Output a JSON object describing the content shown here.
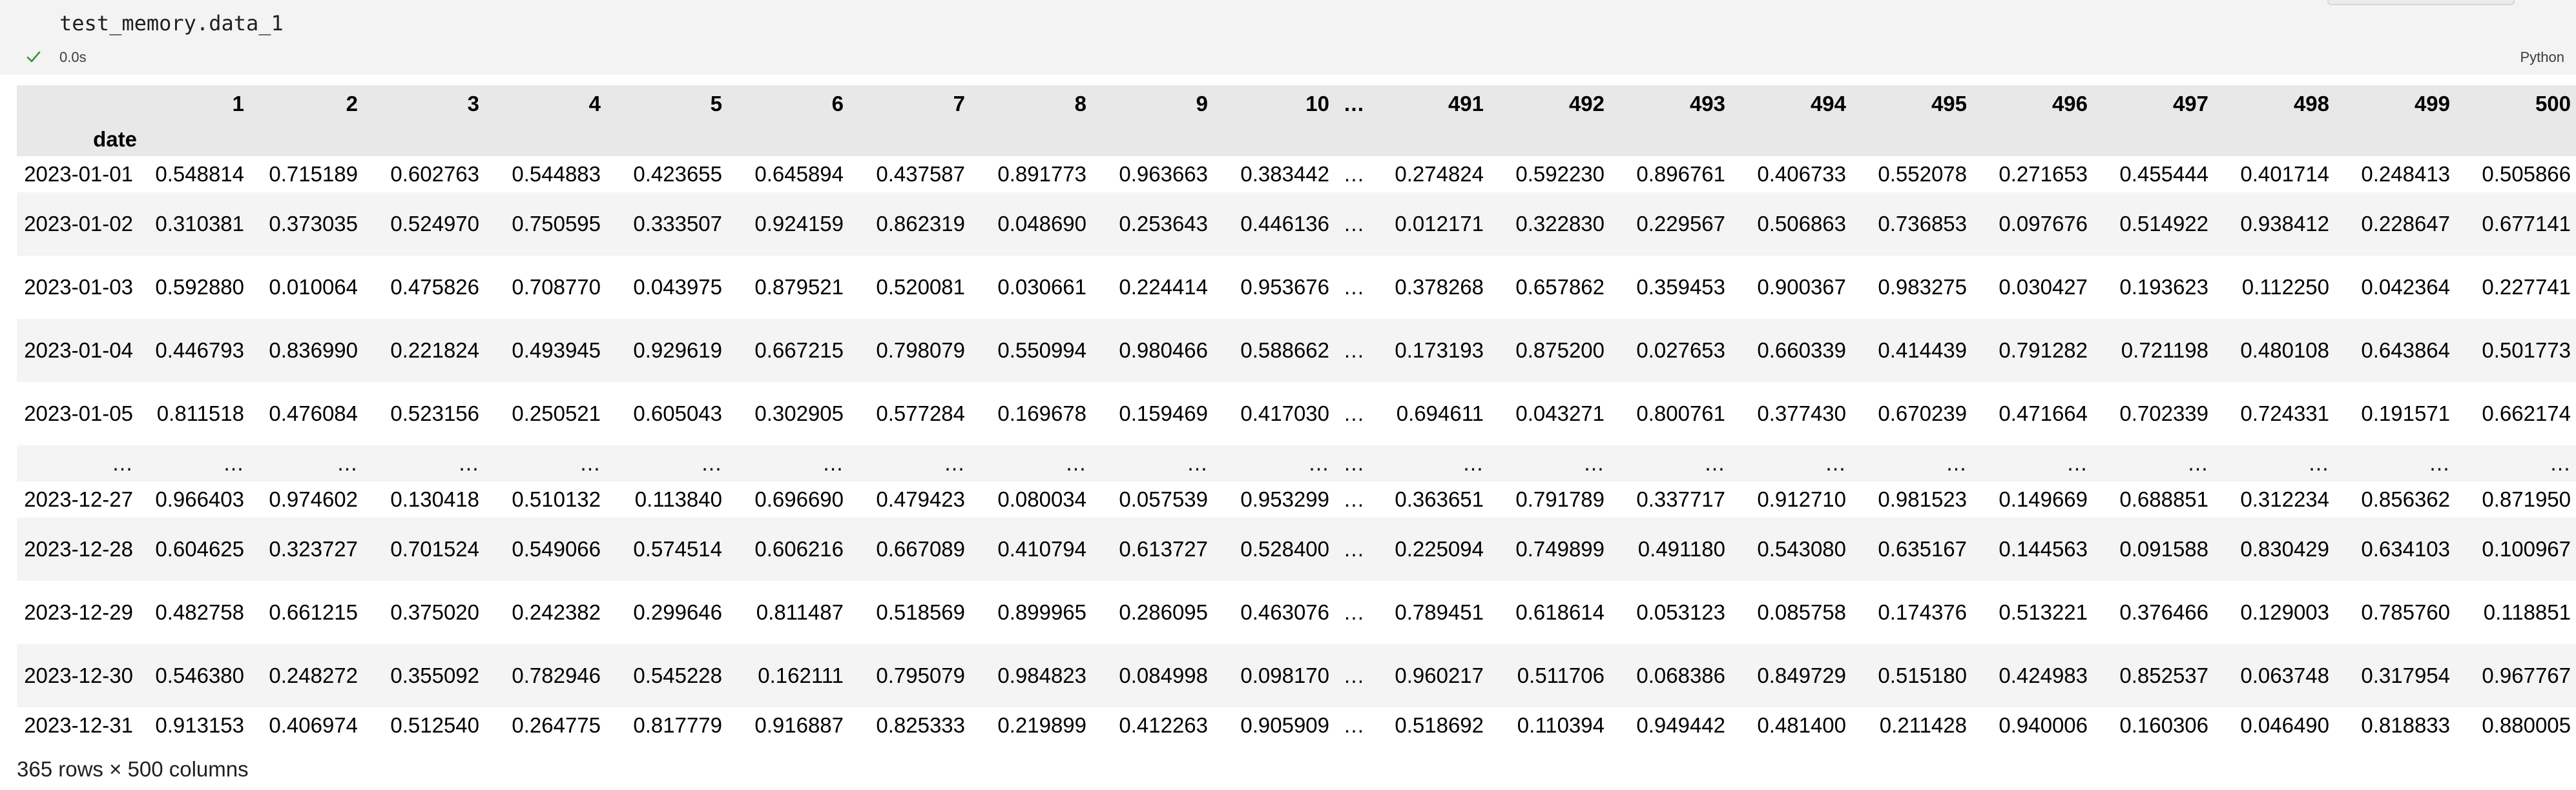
{
  "cell": {
    "code_object": "test_memory",
    "code_attr": "data_1",
    "exec_time": "0.0s",
    "language": "Python"
  },
  "dataframe": {
    "index_name": "date",
    "columns": [
      "1",
      "2",
      "3",
      "4",
      "5",
      "6",
      "7",
      "8",
      "9",
      "10",
      "…",
      "491",
      "492",
      "493",
      "494",
      "495",
      "496",
      "497",
      "498",
      "499",
      "500"
    ],
    "rows": [
      {
        "index": "2023-01-01",
        "values": [
          "0.548814",
          "0.715189",
          "0.602763",
          "0.544883",
          "0.423655",
          "0.645894",
          "0.437587",
          "0.891773",
          "0.963663",
          "0.383442",
          "…",
          "0.274824",
          "0.592230",
          "0.896761",
          "0.406733",
          "0.552078",
          "0.271653",
          "0.455444",
          "0.401714",
          "0.248413",
          "0.505866"
        ]
      },
      {
        "index": "2023-01-02",
        "values": [
          "0.310381",
          "0.373035",
          "0.524970",
          "0.750595",
          "0.333507",
          "0.924159",
          "0.862319",
          "0.048690",
          "0.253643",
          "0.446136",
          "…",
          "0.012171",
          "0.322830",
          "0.229567",
          "0.506863",
          "0.736853",
          "0.097676",
          "0.514922",
          "0.938412",
          "0.228647",
          "0.677141"
        ]
      },
      {
        "index": "2023-01-03",
        "values": [
          "0.592880",
          "0.010064",
          "0.475826",
          "0.708770",
          "0.043975",
          "0.879521",
          "0.520081",
          "0.030661",
          "0.224414",
          "0.953676",
          "…",
          "0.378268",
          "0.657862",
          "0.359453",
          "0.900367",
          "0.983275",
          "0.030427",
          "0.193623",
          "0.112250",
          "0.042364",
          "0.227741"
        ]
      },
      {
        "index": "2023-01-04",
        "values": [
          "0.446793",
          "0.836990",
          "0.221824",
          "0.493945",
          "0.929619",
          "0.667215",
          "0.798079",
          "0.550994",
          "0.980466",
          "0.588662",
          "…",
          "0.173193",
          "0.875200",
          "0.027653",
          "0.660339",
          "0.414439",
          "0.791282",
          "0.721198",
          "0.480108",
          "0.643864",
          "0.501773"
        ]
      },
      {
        "index": "2023-01-05",
        "values": [
          "0.811518",
          "0.476084",
          "0.523156",
          "0.250521",
          "0.605043",
          "0.302905",
          "0.577284",
          "0.169678",
          "0.159469",
          "0.417030",
          "…",
          "0.694611",
          "0.043271",
          "0.800761",
          "0.377430",
          "0.670239",
          "0.471664",
          "0.702339",
          "0.724331",
          "0.191571",
          "0.662174"
        ]
      },
      {
        "index": "…",
        "values": [
          "…",
          "…",
          "…",
          "…",
          "…",
          "…",
          "…",
          "…",
          "…",
          "…",
          "…",
          "…",
          "…",
          "…",
          "…",
          "…",
          "…",
          "…",
          "…",
          "…",
          "…"
        ]
      },
      {
        "index": "2023-12-27",
        "values": [
          "0.966403",
          "0.974602",
          "0.130418",
          "0.510132",
          "0.113840",
          "0.696690",
          "0.479423",
          "0.080034",
          "0.057539",
          "0.953299",
          "…",
          "0.363651",
          "0.791789",
          "0.337717",
          "0.912710",
          "0.981523",
          "0.149669",
          "0.688851",
          "0.312234",
          "0.856362",
          "0.871950"
        ]
      },
      {
        "index": "2023-12-28",
        "values": [
          "0.604625",
          "0.323727",
          "0.701524",
          "0.549066",
          "0.574514",
          "0.606216",
          "0.667089",
          "0.410794",
          "0.613727",
          "0.528400",
          "…",
          "0.225094",
          "0.749899",
          "0.491180",
          "0.543080",
          "0.635167",
          "0.144563",
          "0.091588",
          "0.830429",
          "0.634103",
          "0.100967"
        ]
      },
      {
        "index": "2023-12-29",
        "values": [
          "0.482758",
          "0.661215",
          "0.375020",
          "0.242382",
          "0.299646",
          "0.811487",
          "0.518569",
          "0.899965",
          "0.286095",
          "0.463076",
          "…",
          "0.789451",
          "0.618614",
          "0.053123",
          "0.085758",
          "0.174376",
          "0.513221",
          "0.376466",
          "0.129003",
          "0.785760",
          "0.118851"
        ]
      },
      {
        "index": "2023-12-30",
        "values": [
          "0.546380",
          "0.248272",
          "0.355092",
          "0.782946",
          "0.545228",
          "0.162111",
          "0.795079",
          "0.984823",
          "0.084998",
          "0.098170",
          "…",
          "0.960217",
          "0.511706",
          "0.068386",
          "0.849729",
          "0.515180",
          "0.424983",
          "0.852537",
          "0.063748",
          "0.317954",
          "0.967767"
        ]
      },
      {
        "index": "2023-12-31",
        "values": [
          "0.913153",
          "0.406974",
          "0.512540",
          "0.264775",
          "0.817779",
          "0.916887",
          "0.825333",
          "0.219899",
          "0.412263",
          "0.905909",
          "…",
          "0.518692",
          "0.110394",
          "0.949442",
          "0.481400",
          "0.211428",
          "0.940006",
          "0.160306",
          "0.046490",
          "0.818833",
          "0.880005"
        ]
      }
    ],
    "shape_text": "365 rows × 500 columns"
  },
  "icons": {
    "status": "check-icon"
  },
  "colors": {
    "status_check": "#3a8f3a",
    "header_bg": "#e8e8e8",
    "stripe_bg": "#f4f4f4",
    "cell_bg": "#f3f3f3"
  }
}
